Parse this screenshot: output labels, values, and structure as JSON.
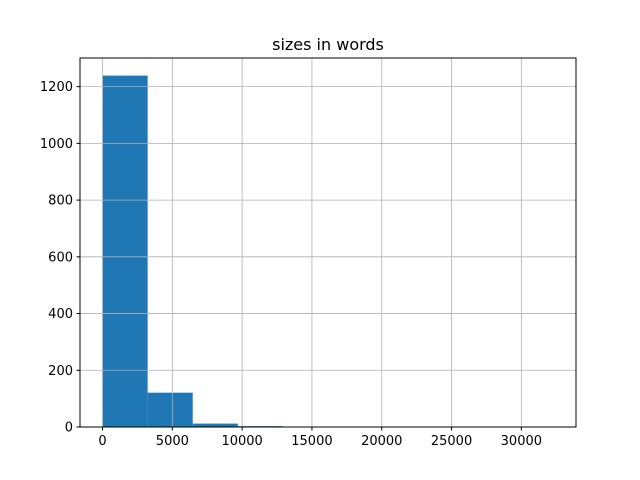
{
  "chart_data": {
    "type": "bar",
    "title": "sizes in words",
    "xlabel": "",
    "ylabel": "",
    "bin_edges": [
      0,
      3230,
      6460,
      9690,
      12920,
      16150,
      19380,
      22610,
      25840,
      29070,
      32300
    ],
    "values": [
      1239,
      121,
      12,
      3,
      1,
      0,
      0,
      0,
      0,
      1
    ],
    "xlim": [
      -1615,
      33915
    ],
    "ylim": [
      0,
      1301
    ],
    "xticks": [
      0,
      5000,
      10000,
      15000,
      20000,
      25000,
      30000
    ],
    "yticks": [
      0,
      200,
      400,
      600,
      800,
      1000,
      1200
    ],
    "grid": true,
    "bar_color": "#1f77b4",
    "grid_color": "#b0b0b0"
  }
}
